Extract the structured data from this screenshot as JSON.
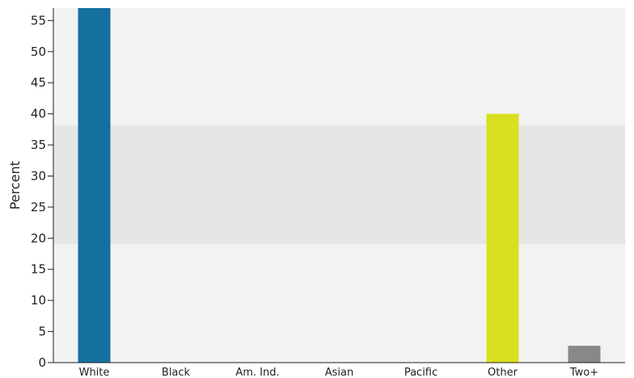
{
  "chart_data": {
    "type": "bar",
    "ylabel": "Percent",
    "xlabel": "",
    "ylim": [
      0,
      57
    ],
    "yticks": [
      0,
      5,
      10,
      15,
      20,
      25,
      30,
      35,
      40,
      45,
      50,
      55
    ],
    "categories": [
      "White",
      "Black",
      "Am. Ind.",
      "Asian",
      "Pacific",
      "Other",
      "Two+"
    ],
    "values": [
      57.5,
      0,
      0,
      0,
      0,
      40.0,
      2.7
    ],
    "bar_colors": [
      "#1570a0",
      "#1570a0",
      "#1570a0",
      "#1570a0",
      "#1570a0",
      "#d8e01f",
      "#888888"
    ],
    "highlight_band": [
      19,
      38.2
    ],
    "background_color": "#f2f2f2",
    "band_color": "#e6e6e6",
    "grid": false,
    "legend": "none"
  }
}
